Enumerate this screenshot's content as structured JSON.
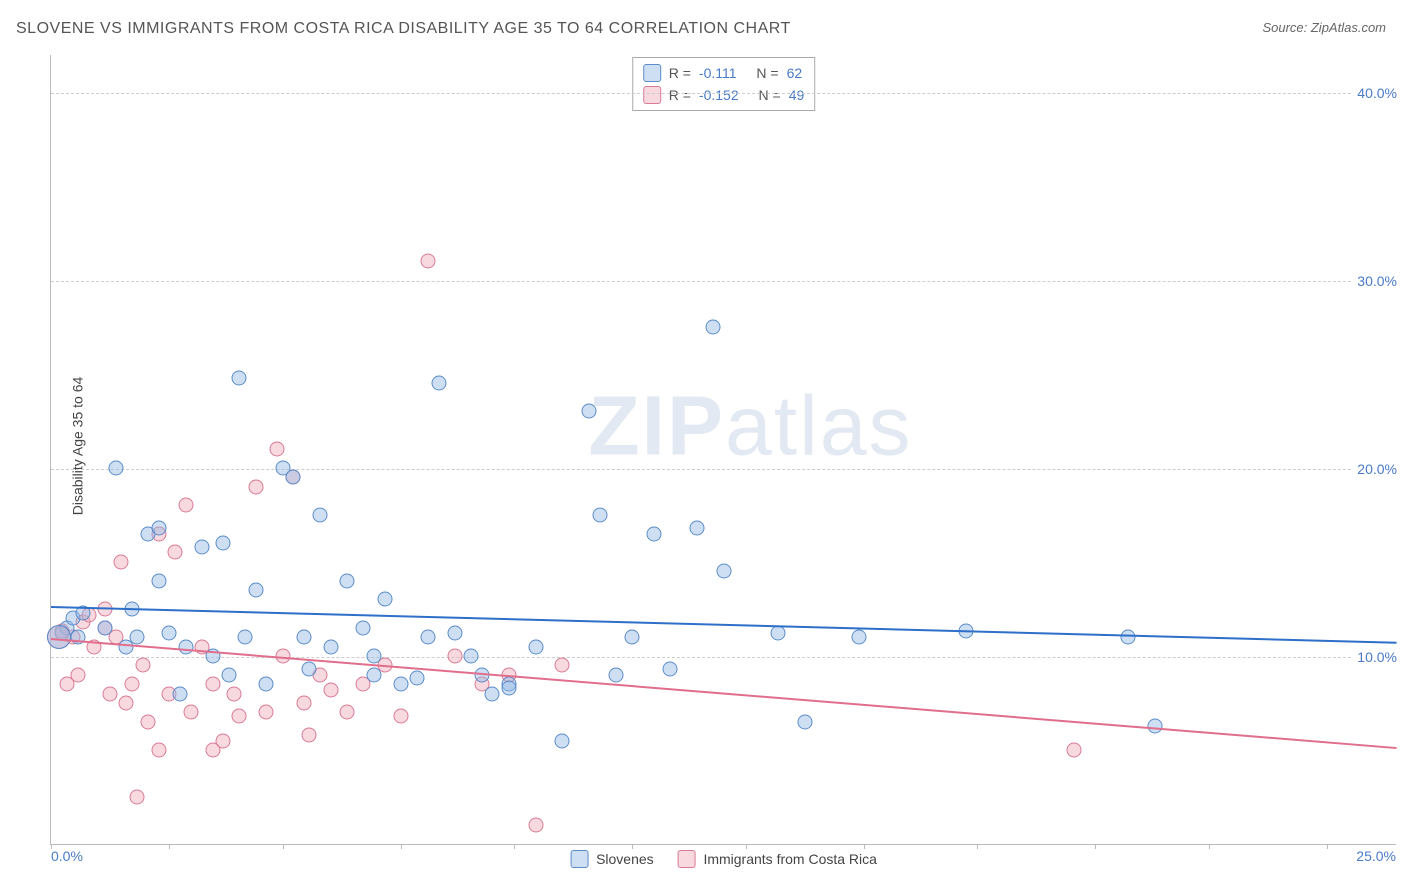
{
  "title": "SLOVENE VS IMMIGRANTS FROM COSTA RICA DISABILITY AGE 35 TO 64 CORRELATION CHART",
  "source": "Source: ZipAtlas.com",
  "ylabel": "Disability Age 35 to 64",
  "watermark_zip": "ZIP",
  "watermark_atlas": "atlas",
  "chart": {
    "type": "scatter",
    "xlim": [
      0.0,
      25.0
    ],
    "ylim": [
      0.0,
      42.0
    ],
    "background_color": "#ffffff",
    "grid_color": "#cccccc",
    "grid_style": "dashed",
    "yticks": [
      10.0,
      20.0,
      30.0,
      40.0
    ],
    "ytick_labels": [
      "10.0%",
      "20.0%",
      "30.0%",
      "40.0%"
    ],
    "xtick_marks": [
      0,
      2.2,
      4.3,
      6.5,
      8.6,
      10.8,
      12.9,
      15.1,
      17.2,
      19.4,
      21.5,
      23.7
    ],
    "xtick_left_label": "0.0%",
    "xtick_right_label": "25.0%",
    "marker_diameter": 15,
    "marker_shape": "circle",
    "marker_opacity": 0.45,
    "big_marker_diameter": 24,
    "trend_line_width": 2
  },
  "legend_top": {
    "rows": [
      {
        "r_label": "R =",
        "r_val": "-0.111",
        "n_label": "N =",
        "n_val": "62",
        "swatch": "blue"
      },
      {
        "r_label": "R =",
        "r_val": "-0.152",
        "n_label": "N =",
        "n_val": "49",
        "swatch": "pink"
      }
    ]
  },
  "legend_bottom": {
    "items": [
      {
        "label": "Slovenes",
        "swatch": "blue"
      },
      {
        "label": "Immigrants from Costa Rica",
        "swatch": "pink"
      }
    ]
  },
  "colors": {
    "blue_fill": "rgba(147,184,230,0.45)",
    "blue_stroke": "#5a8cc9",
    "blue_line": "#2e6fc9",
    "pink_fill": "rgba(239,170,185,0.45)",
    "pink_stroke": "#d97a94",
    "pink_line": "#e06e8c",
    "axis_text": "#4a7bc8",
    "title_text": "#555555",
    "border": "#bbbbbb"
  },
  "series": {
    "blue": {
      "label": "Slovenes",
      "trend": {
        "y_at_x0": 12.7,
        "y_at_xmax": 10.8
      },
      "points": [
        [
          0.2,
          11.2
        ],
        [
          0.3,
          11.5
        ],
        [
          0.4,
          12.0
        ],
        [
          0.5,
          11.0
        ],
        [
          0.6,
          12.3
        ],
        [
          1.0,
          11.5
        ],
        [
          1.2,
          20.0
        ],
        [
          1.4,
          10.5
        ],
        [
          1.6,
          11.0
        ],
        [
          1.8,
          16.5
        ],
        [
          2.0,
          16.8
        ],
        [
          2.0,
          14.0
        ],
        [
          2.2,
          11.2
        ],
        [
          2.4,
          8.0
        ],
        [
          2.8,
          15.8
        ],
        [
          3.0,
          10.0
        ],
        [
          3.2,
          16.0
        ],
        [
          3.5,
          24.8
        ],
        [
          3.6,
          11.0
        ],
        [
          3.8,
          13.5
        ],
        [
          4.0,
          8.5
        ],
        [
          4.3,
          20.0
        ],
        [
          4.5,
          19.5
        ],
        [
          4.7,
          11.0
        ],
        [
          5.0,
          17.5
        ],
        [
          5.2,
          10.5
        ],
        [
          5.5,
          14.0
        ],
        [
          5.8,
          11.5
        ],
        [
          6.0,
          9.0
        ],
        [
          6.2,
          13.0
        ],
        [
          6.5,
          8.5
        ],
        [
          6.8,
          8.8
        ],
        [
          7.0,
          11.0
        ],
        [
          7.2,
          24.5
        ],
        [
          7.5,
          11.2
        ],
        [
          7.8,
          10.0
        ],
        [
          8.0,
          9.0
        ],
        [
          8.2,
          8.0
        ],
        [
          8.5,
          8.5
        ],
        [
          9.0,
          10.5
        ],
        [
          9.5,
          5.5
        ],
        [
          10.0,
          23.0
        ],
        [
          10.2,
          17.5
        ],
        [
          10.5,
          9.0
        ],
        [
          10.8,
          11.0
        ],
        [
          11.2,
          16.5
        ],
        [
          11.5,
          9.3
        ],
        [
          12.0,
          16.8
        ],
        [
          12.3,
          27.5
        ],
        [
          12.5,
          14.5
        ],
        [
          13.5,
          11.2
        ],
        [
          14.0,
          6.5
        ],
        [
          15.0,
          11.0
        ],
        [
          17.0,
          11.3
        ],
        [
          20.0,
          11.0
        ],
        [
          20.5,
          6.3
        ],
        [
          8.5,
          8.3
        ],
        [
          6.0,
          10.0
        ],
        [
          4.8,
          9.3
        ],
        [
          3.3,
          9.0
        ],
        [
          2.5,
          10.5
        ],
        [
          1.5,
          12.5
        ]
      ]
    },
    "pink": {
      "label": "Immigrants from Costa Rica",
      "trend": {
        "y_at_x0": 11.0,
        "y_at_xmax": 5.2
      },
      "points": [
        [
          0.2,
          11.3
        ],
        [
          0.3,
          8.5
        ],
        [
          0.4,
          11.0
        ],
        [
          0.5,
          9.0
        ],
        [
          0.6,
          11.8
        ],
        [
          0.7,
          12.2
        ],
        [
          0.8,
          10.5
        ],
        [
          1.0,
          12.5
        ],
        [
          1.1,
          8.0
        ],
        [
          1.2,
          11.0
        ],
        [
          1.3,
          15.0
        ],
        [
          1.5,
          8.5
        ],
        [
          1.6,
          2.5
        ],
        [
          1.7,
          9.5
        ],
        [
          1.8,
          6.5
        ],
        [
          2.0,
          16.5
        ],
        [
          2.2,
          8.0
        ],
        [
          2.3,
          15.5
        ],
        [
          2.5,
          18.0
        ],
        [
          2.6,
          7.0
        ],
        [
          2.8,
          10.5
        ],
        [
          3.0,
          5.0
        ],
        [
          3.2,
          5.5
        ],
        [
          3.4,
          8.0
        ],
        [
          3.5,
          6.8
        ],
        [
          3.8,
          19.0
        ],
        [
          4.0,
          7.0
        ],
        [
          4.2,
          21.0
        ],
        [
          4.3,
          10.0
        ],
        [
          4.5,
          19.5
        ],
        [
          4.7,
          7.5
        ],
        [
          5.0,
          9.0
        ],
        [
          5.2,
          8.2
        ],
        [
          5.5,
          7.0
        ],
        [
          5.8,
          8.5
        ],
        [
          6.2,
          9.5
        ],
        [
          6.5,
          6.8
        ],
        [
          7.0,
          31.0
        ],
        [
          7.5,
          10.0
        ],
        [
          8.0,
          8.5
        ],
        [
          8.5,
          9.0
        ],
        [
          9.0,
          1.0
        ],
        [
          9.5,
          9.5
        ],
        [
          2.0,
          5.0
        ],
        [
          3.0,
          8.5
        ],
        [
          1.4,
          7.5
        ],
        [
          4.8,
          5.8
        ],
        [
          19.0,
          5.0
        ],
        [
          1.0,
          11.5
        ]
      ]
    }
  }
}
